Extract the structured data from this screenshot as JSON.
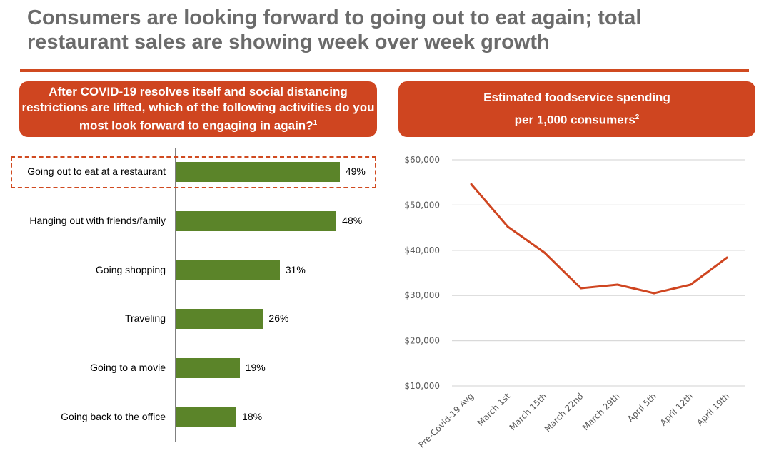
{
  "title": "Consumers are looking forward to going out to eat again; total restaurant sales are showing week over week growth",
  "left_panel": {
    "header": "After COVID-19 resolves itself and social distancing restrictions are lifted, which of the following activities do you most look forward to engaging in again?",
    "footnote": "1"
  },
  "right_panel": {
    "header_line1": "Estimated foodservice spending",
    "header_line2": "per 1,000 consumers",
    "footnote": "2"
  },
  "colors": {
    "accent": "#cf4520",
    "bar": "#5b8429",
    "title": "#6b6b6b"
  },
  "chart_data": [
    {
      "type": "bar",
      "orientation": "horizontal",
      "categories": [
        "Going out to eat at a restaurant",
        "Hanging out with friends/family",
        "Going shopping",
        "Traveling",
        "Going to a movie",
        "Going back to the office"
      ],
      "values": [
        49,
        48,
        31,
        26,
        19,
        18
      ],
      "labels": [
        "49%",
        "48%",
        "31%",
        "26%",
        "19%",
        "18%"
      ],
      "highlighted": "Going out to eat at a restaurant"
    },
    {
      "type": "line",
      "categories": [
        "Pre-Covid-19 Avg",
        "March 1st",
        "March 15th",
        "March 22nd",
        "March 29th",
        "April 5th",
        "April 12th",
        "April 19th"
      ],
      "values": [
        54600,
        45200,
        39500,
        31600,
        32400,
        30500,
        32400,
        38400
      ],
      "yticks": [
        10000,
        20000,
        30000,
        40000,
        50000,
        60000
      ],
      "ytick_labels": [
        "$10,000",
        "$20,000",
        "$30,000",
        "$40,000",
        "$50,000",
        "$60,000"
      ],
      "ylim": [
        10000,
        60000
      ],
      "grid": true
    }
  ]
}
